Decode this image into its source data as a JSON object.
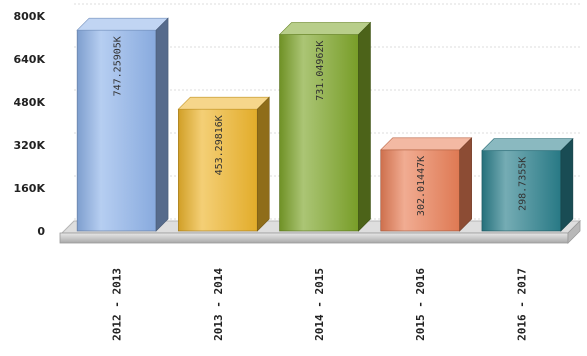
{
  "chart_data": {
    "type": "bar",
    "categories": [
      "2012 - 2013",
      "2013 - 2014",
      "2014 - 2015",
      "2015 - 2016",
      "2016 - 2017"
    ],
    "values": [
      747.25905,
      453.29816,
      731.04962,
      302.01447,
      298.7355
    ],
    "data_labels": [
      "747.25905K",
      "453.29816K",
      "731.04962K",
      "302.01447K",
      "298.7355K"
    ],
    "y_ticks": [
      "0",
      "160K",
      "320K",
      "480K",
      "640K",
      "800K"
    ],
    "ylim": [
      0,
      800
    ],
    "colors": [
      "#8fb3ea",
      "#eeb52c",
      "#7ea52a",
      "#ea7f57",
      "#2a7f8c"
    ],
    "grid": true,
    "legend": "none"
  }
}
